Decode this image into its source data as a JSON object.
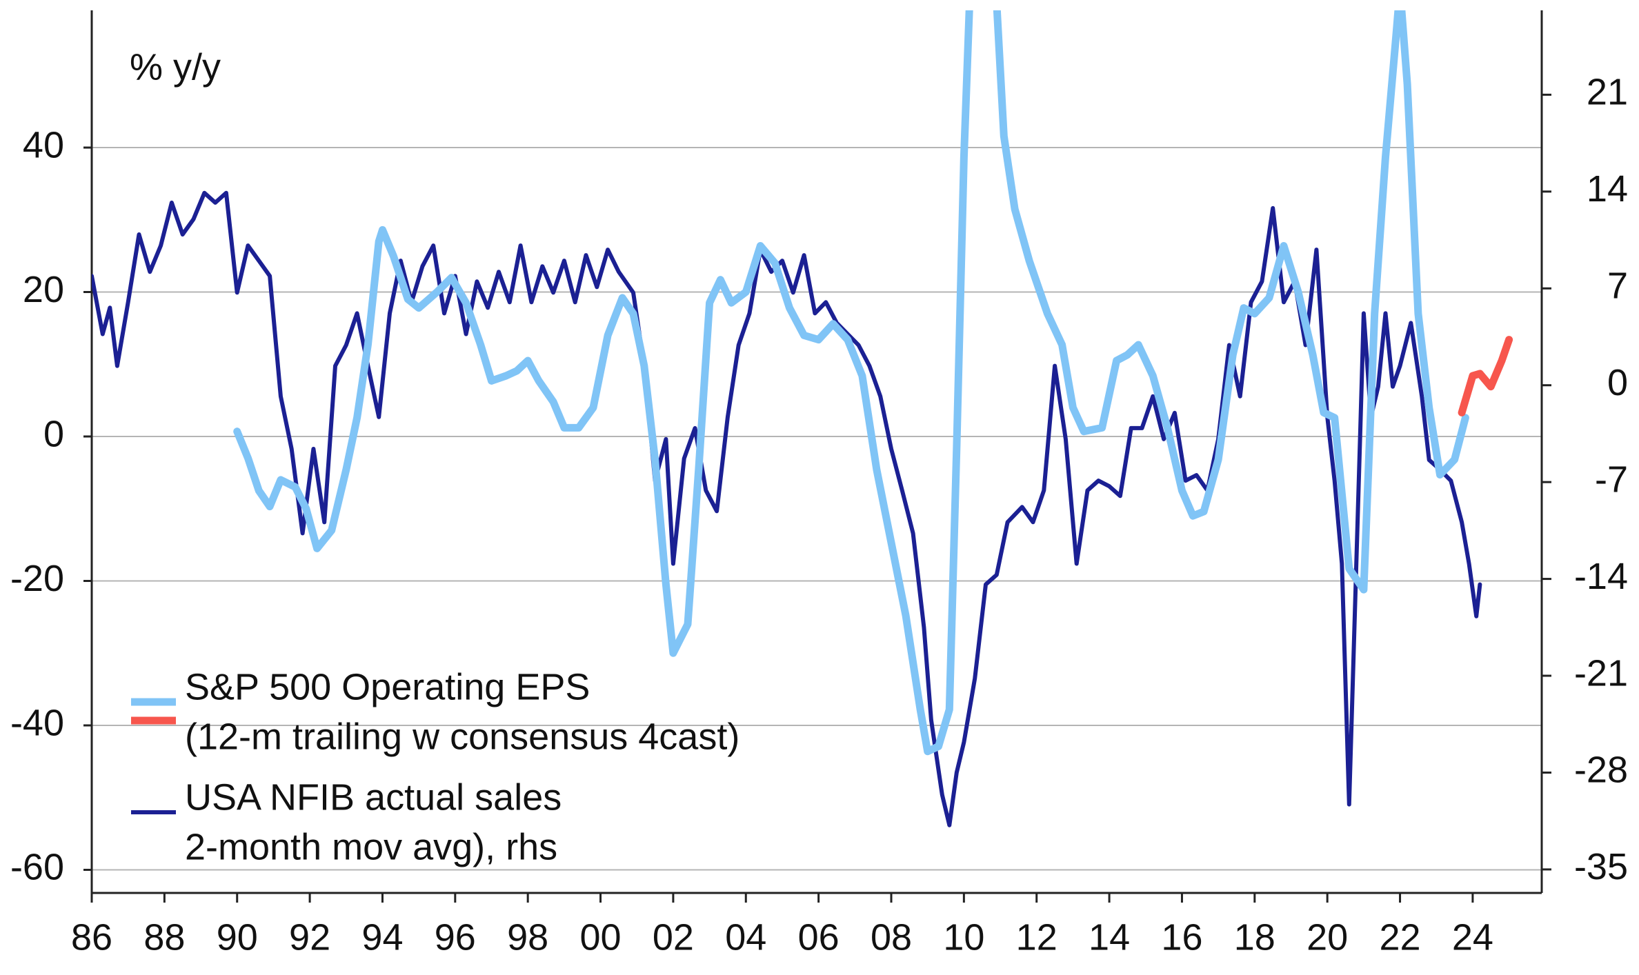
{
  "chart_data": {
    "type": "line",
    "ylabel": "% y/y",
    "xlim": [
      1986,
      2025.9
    ],
    "xticks": [
      {
        "value": 1986,
        "label": "86"
      },
      {
        "value": 1988,
        "label": "88"
      },
      {
        "value": 1990,
        "label": "90"
      },
      {
        "value": 1992,
        "label": "92"
      },
      {
        "value": 1994,
        "label": "94"
      },
      {
        "value": 1996,
        "label": "96"
      },
      {
        "value": 1998,
        "label": "98"
      },
      {
        "value": 2000,
        "label": "00"
      },
      {
        "value": 2002,
        "label": "02"
      },
      {
        "value": 2004,
        "label": "04"
      },
      {
        "value": 2006,
        "label": "06"
      },
      {
        "value": 2008,
        "label": "08"
      },
      {
        "value": 2010,
        "label": "10"
      },
      {
        "value": 2012,
        "label": "12"
      },
      {
        "value": 2014,
        "label": "14"
      },
      {
        "value": 2016,
        "label": "16"
      },
      {
        "value": 2018,
        "label": "18"
      },
      {
        "value": 2020,
        "label": "20"
      },
      {
        "value": 2022,
        "label": "22"
      },
      {
        "value": 2024,
        "label": "24"
      }
    ],
    "ylim": [
      -63.2,
      59
    ],
    "yticks": [
      -60,
      -40,
      -20,
      0,
      20,
      40
    ],
    "y2lim": [
      -36.7,
      27.1
    ],
    "y2ticks": [
      -35,
      -28,
      -21,
      -14,
      -7,
      0,
      7,
      14,
      21
    ],
    "grid": true,
    "legend": "lower left",
    "series": [
      {
        "name": "S&P 500 Operating EPS",
        "legend_label": [
          "S&P 500 Operating EPS",
          "(12-m trailing w consensus 4cast)"
        ],
        "color": "#80c4f6",
        "x": [
          1990.0,
          1990.3,
          1990.6,
          1990.9,
          1991.2,
          1991.6,
          1991.9,
          1992.2,
          1992.6,
          1993.0,
          1993.3,
          1993.6,
          1993.9,
          1994.0,
          1994.3,
          1994.7,
          1995.0,
          1995.5,
          1995.9,
          1996.3,
          1996.7,
          1997.0,
          1997.4,
          1997.7,
          1998.0,
          1998.3,
          1998.7,
          1999.0,
          1999.4,
          1999.8,
          2000.2,
          2000.6,
          2000.9,
          2001.2,
          2001.5,
          2001.8,
          2002.0,
          2002.4,
          2002.7,
          2003.0,
          2003.3,
          2003.6,
          2004.0,
          2004.4,
          2004.8,
          2005.2,
          2005.6,
          2006.0,
          2006.4,
          2006.8,
          2007.2,
          2007.6,
          2008.0,
          2008.4,
          2008.8,
          2009.0,
          2009.3,
          2009.6,
          2009.8,
          2010.0,
          2010.3,
          2010.6,
          2010.9,
          2011.1,
          2011.4,
          2011.8,
          2012.3,
          2012.7,
          2013.0,
          2013.3,
          2013.8,
          2014.2,
          2014.5,
          2014.8,
          2015.2,
          2015.6,
          2016.0,
          2016.3,
          2016.6,
          2017.0,
          2017.4,
          2017.7,
          2018.0,
          2018.4,
          2018.8,
          2019.2,
          2019.6,
          2019.9,
          2020.2,
          2020.6,
          2021.0,
          2021.3,
          2021.6,
          2021.9,
          2022.0,
          2022.2,
          2022.5,
          2022.8,
          2023.1,
          2023.5,
          2023.8
        ],
        "values": [
          0.7,
          -3,
          -7.5,
          -9.7,
          -6,
          -7,
          -10,
          -15.5,
          -13,
          -4.6,
          2.6,
          12.7,
          27,
          28.6,
          25,
          19,
          17.8,
          20,
          22,
          18.5,
          12.7,
          7.7,
          8.4,
          9.1,
          10.5,
          7.7,
          4.8,
          1.2,
          1.2,
          4,
          14,
          19.2,
          17,
          9.8,
          -3.2,
          -20.5,
          -30,
          -26,
          -4.6,
          18.5,
          21.7,
          18.5,
          20,
          26.4,
          24,
          17.8,
          14,
          13.4,
          15.6,
          13.4,
          8.4,
          -4.6,
          -14.7,
          -24.8,
          -37.8,
          -43.6,
          -42.9,
          -37.8,
          -1.7,
          38.7,
          80,
          80,
          60,
          41.6,
          31.5,
          24.3,
          17,
          12.7,
          4,
          0.7,
          1.2,
          10.5,
          11.3,
          12.7,
          8.4,
          1.2,
          -7.5,
          -11,
          -10.4,
          -3.2,
          11.3,
          17.8,
          17,
          19.2,
          26.4,
          20,
          11.3,
          3.3,
          2.6,
          -18.3,
          -21.2,
          17,
          38.7,
          56,
          62,
          48.8,
          17,
          4,
          -5.3,
          -3.2,
          2.6
        ]
      },
      {
        "color": "#f7564d",
        "x": [
          2023.7,
          2024.0,
          2024.2,
          2024.5,
          2024.8,
          2025.0
        ],
        "values": [
          3.3,
          8.4,
          8.7,
          6.9,
          10.5,
          13.4
        ]
      },
      {
        "name": "USA NFIB actual sales",
        "legend_label": [
          "USA NFIB actual sales",
          "2-month mov avg), rhs"
        ],
        "color": "#1b2093",
        "axis": "y2",
        "x": [
          1986.0,
          1986.3,
          1986.5,
          1986.7,
          1987.0,
          1987.3,
          1987.6,
          1987.9,
          1988.2,
          1988.5,
          1988.8,
          1989.1,
          1989.4,
          1989.7,
          1990.0,
          1990.3,
          1990.6,
          1990.9,
          1991.2,
          1991.5,
          1991.8,
          1992.1,
          1992.4,
          1992.7,
          1993.0,
          1993.3,
          1993.6,
          1993.9,
          1994.2,
          1994.5,
          1994.8,
          1995.1,
          1995.4,
          1995.7,
          1996.0,
          1996.3,
          1996.6,
          1996.9,
          1997.2,
          1997.5,
          1997.8,
          1998.1,
          1998.4,
          1998.7,
          1999.0,
          1999.3,
          1999.6,
          1999.9,
          2000.2,
          2000.5,
          2000.9,
          2001.2,
          2001.5,
          2001.8,
          2002.0,
          2002.3,
          2002.6,
          2002.9,
          2003.2,
          2003.5,
          2003.8,
          2004.1,
          2004.4,
          2004.7,
          2005.0,
          2005.3,
          2005.6,
          2005.9,
          2006.2,
          2006.5,
          2006.8,
          2007.1,
          2007.4,
          2007.7,
          2008.0,
          2008.3,
          2008.6,
          2008.9,
          2009.1,
          2009.4,
          2009.6,
          2009.8,
          2010.0,
          2010.3,
          2010.6,
          2010.9,
          2011.2,
          2011.6,
          2011.9,
          2012.2,
          2012.5,
          2012.8,
          2013.1,
          2013.4,
          2013.7,
          2014.0,
          2014.3,
          2014.6,
          2014.9,
          2015.2,
          2015.5,
          2015.8,
          2016.1,
          2016.4,
          2016.7,
          2017.0,
          2017.3,
          2017.6,
          2017.9,
          2018.2,
          2018.5,
          2018.8,
          2019.1,
          2019.4,
          2019.7,
          2020.0,
          2020.2,
          2020.4,
          2020.6,
          2020.9,
          2021.0,
          2021.2,
          2021.4,
          2021.6,
          2021.8,
          2022.0,
          2022.3,
          2022.6,
          2022.8,
          2023.1,
          2023.4,
          2023.7,
          2023.9,
          2024.1,
          2024.2
        ],
        "values": [
          7.9,
          3.7,
          5.6,
          1.4,
          6,
          10.9,
          8.2,
          10.1,
          13.2,
          10.9,
          12,
          13.9,
          13.2,
          13.9,
          6.7,
          10.1,
          9,
          7.9,
          -0.8,
          -4.6,
          -10.7,
          -4.6,
          -9.9,
          1.4,
          2.9,
          5.2,
          1.4,
          -2.3,
          5.2,
          9,
          6,
          8.6,
          10.1,
          5.2,
          7.9,
          3.7,
          7.5,
          5.6,
          8.2,
          6,
          10.1,
          6,
          8.6,
          6.7,
          9,
          6,
          9.4,
          7.1,
          9.8,
          8.2,
          6.7,
          1.4,
          -6.9,
          -3.9,
          -12.9,
          -5.3,
          -3.1,
          -7.6,
          -9.1,
          -2.3,
          2.9,
          5.2,
          9.8,
          8.2,
          9,
          6.7,
          9.4,
          5.2,
          6,
          4.5,
          3.7,
          2.9,
          1.4,
          -0.8,
          -4.6,
          -7.6,
          -10.7,
          -17.5,
          -24.2,
          -29.6,
          -31.8,
          -28,
          -25.8,
          -21.2,
          -14.4,
          -13.7,
          -9.9,
          -8.8,
          -9.9,
          -7.6,
          1.4,
          -3.9,
          -12.9,
          -7.6,
          -6.9,
          -7.3,
          -8,
          -3.1,
          -3.1,
          -0.8,
          -3.9,
          -2,
          -6.9,
          -6.5,
          -7.6,
          -3.9,
          2.9,
          -0.8,
          6,
          7.5,
          12.8,
          6,
          7.5,
          2.9,
          9.8,
          -2.3,
          -6.9,
          -12.9,
          -30.3,
          -3.9,
          5.2,
          -2.3,
          -0.1,
          5.2,
          -0.1,
          1.4,
          4.5,
          -0.8,
          -5.4,
          -6.1,
          -6.9,
          -9.9,
          -12.9,
          -16.7,
          -14.4
        ]
      }
    ]
  }
}
